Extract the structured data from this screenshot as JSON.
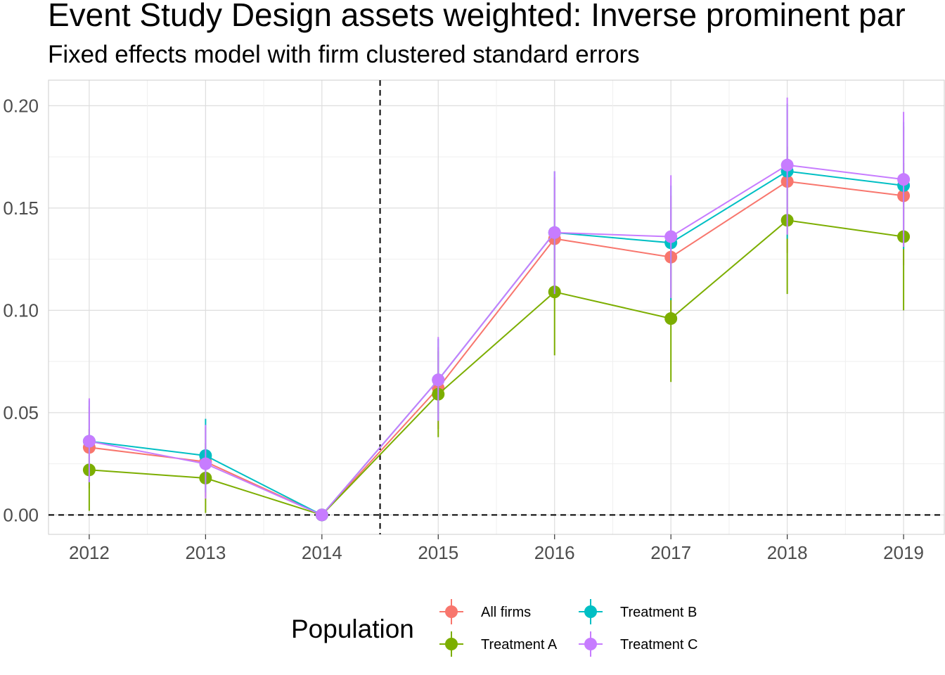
{
  "chart_data": {
    "type": "line",
    "title": "Event Study Design assets weighted: Inverse prominent par",
    "subtitle": "Fixed effects model with firm clustered standard errors",
    "xlabel": "",
    "ylabel": "",
    "x": [
      2012,
      2013,
      2014,
      2015,
      2016,
      2017,
      2018,
      2019
    ],
    "x_tick_labels": [
      "2012",
      "2013",
      "2014",
      "2015",
      "2016",
      "2017",
      "2018",
      "2019"
    ],
    "xlim": [
      2011.65,
      2019.35
    ],
    "ylim": [
      -0.0095,
      0.2125
    ],
    "y_ticks": [
      0.0,
      0.05,
      0.1,
      0.15,
      0.2
    ],
    "y_tick_labels": [
      "0.00",
      "0.05",
      "0.10",
      "0.15",
      "0.20"
    ],
    "reference_lines": {
      "horizontal_y": 0,
      "vertical_x": 2014.5,
      "style": "dashed"
    },
    "grid": true,
    "legend": {
      "title": "Population",
      "position": "bottom"
    },
    "series": [
      {
        "name": "All firms",
        "color": "#F8766D",
        "values": [
          0.033,
          0.026,
          0.0,
          0.062,
          0.135,
          0.126,
          0.163,
          0.156
        ],
        "lower": [
          0.013,
          0.009,
          0.0,
          0.042,
          0.105,
          0.096,
          0.128,
          0.122
        ],
        "upper": [
          0.053,
          0.043,
          0.0,
          0.082,
          0.165,
          0.156,
          0.198,
          0.19
        ]
      },
      {
        "name": "Treatment A",
        "color": "#7CAE00",
        "values": [
          0.022,
          0.018,
          0.0,
          0.059,
          0.109,
          0.096,
          0.144,
          0.136
        ],
        "lower": [
          0.002,
          0.001,
          0.0,
          0.038,
          0.078,
          0.065,
          0.108,
          0.1
        ],
        "upper": [
          0.042,
          0.035,
          0.0,
          0.08,
          0.14,
          0.127,
          0.18,
          0.172
        ]
      },
      {
        "name": "Treatment B",
        "color": "#00BFC4",
        "values": [
          0.036,
          0.029,
          0.0,
          0.066,
          0.138,
          0.133,
          0.168,
          0.161
        ],
        "lower": [
          0.016,
          0.011,
          0.0,
          0.046,
          0.108,
          0.105,
          0.135,
          0.13
        ],
        "upper": [
          0.056,
          0.047,
          0.0,
          0.086,
          0.168,
          0.161,
          0.201,
          0.192
        ]
      },
      {
        "name": "Treatment C",
        "color": "#C77CFF",
        "values": [
          0.036,
          0.025,
          0.0,
          0.066,
          0.138,
          0.136,
          0.171,
          0.164
        ],
        "lower": [
          0.016,
          0.008,
          0.0,
          0.046,
          0.108,
          0.106,
          0.137,
          0.131
        ],
        "upper": [
          0.057,
          0.044,
          0.0,
          0.087,
          0.168,
          0.166,
          0.204,
          0.197
        ]
      }
    ]
  }
}
